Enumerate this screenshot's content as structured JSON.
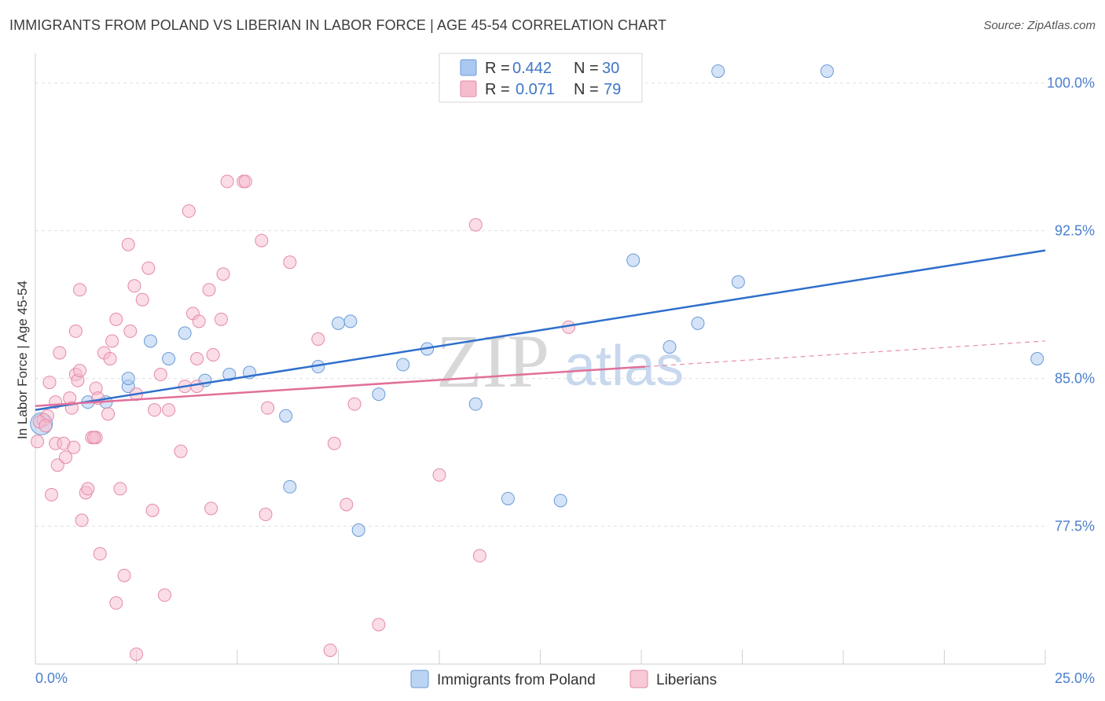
{
  "title": "IMMIGRANTS FROM POLAND VS LIBERIAN IN LABOR FORCE | AGE 45-54 CORRELATION CHART",
  "source": "Source: ZipAtlas.com",
  "watermark": {
    "zip": "ZIP",
    "atlas": "atlas"
  },
  "legend": {
    "rows": [
      {
        "r_label": "R = ",
        "r_value": "0.442",
        "n_label": "N = ",
        "n_value": "30",
        "color": "#a9c8f0",
        "stroke": "#6b9ad8"
      },
      {
        "r_label": "R = ",
        "r_value": "0.071",
        "n_label": "N = ",
        "n_value": "79",
        "color": "#f5bccd",
        "stroke": "#e58aa6"
      }
    ]
  },
  "bottom_legend": [
    {
      "label": "Immigrants from Poland",
      "color": "#bcd4f3",
      "stroke": "#6b9ad8"
    },
    {
      "label": "Liberians",
      "color": "#f8c9d7",
      "stroke": "#e58aa6"
    }
  ],
  "chart_data": {
    "type": "scatter",
    "title": "IMMIGRANTS FROM POLAND VS LIBERIAN IN LABOR FORCE | AGE 45-54 CORRELATION CHART",
    "xlabel": "",
    "ylabel": "In Labor Force | Age 45-54",
    "xlim": [
      0,
      25
    ],
    "ylim": [
      70.5,
      101.5
    ],
    "x_tick_labels": [
      {
        "value": 0,
        "label": "0.0%"
      },
      {
        "value": 25,
        "label": "25.0%"
      }
    ],
    "y_ticks": [
      {
        "value": 77.5,
        "label": "77.5%"
      },
      {
        "value": 85.0,
        "label": "85.0%"
      },
      {
        "value": 92.5,
        "label": "92.5%"
      },
      {
        "value": 100.0,
        "label": "100.0%"
      }
    ],
    "grid": true,
    "series": [
      {
        "name": "Immigrants from Poland",
        "color": "#a9c8f0",
        "stroke": "#6b9ad8",
        "line_color": "#2f6fcc",
        "trend": {
          "x": [
            0,
            25
          ],
          "y": [
            83.4,
            91.5
          ]
        },
        "points": [
          {
            "x": 0.15,
            "y": 82.7,
            "big": true
          },
          {
            "x": 1.3,
            "y": 83.8
          },
          {
            "x": 1.75,
            "y": 83.8
          },
          {
            "x": 2.3,
            "y": 84.6
          },
          {
            "x": 2.3,
            "y": 85.0
          },
          {
            "x": 2.85,
            "y": 86.9
          },
          {
            "x": 3.3,
            "y": 86.0
          },
          {
            "x": 3.7,
            "y": 87.3
          },
          {
            "x": 4.2,
            "y": 84.9
          },
          {
            "x": 4.8,
            "y": 85.2
          },
          {
            "x": 5.3,
            "y": 85.3
          },
          {
            "x": 6.2,
            "y": 83.1
          },
          {
            "x": 6.3,
            "y": 79.5
          },
          {
            "x": 7.0,
            "y": 85.6
          },
          {
            "x": 7.5,
            "y": 87.8
          },
          {
            "x": 7.8,
            "y": 87.9
          },
          {
            "x": 8.0,
            "y": 77.3
          },
          {
            "x": 8.5,
            "y": 84.2
          },
          {
            "x": 9.1,
            "y": 85.7
          },
          {
            "x": 9.7,
            "y": 86.5
          },
          {
            "x": 10.9,
            "y": 83.7
          },
          {
            "x": 11.7,
            "y": 78.9
          },
          {
            "x": 13.0,
            "y": 78.8
          },
          {
            "x": 14.8,
            "y": 91.0
          },
          {
            "x": 15.7,
            "y": 86.6
          },
          {
            "x": 16.4,
            "y": 87.8
          },
          {
            "x": 16.9,
            "y": 100.6
          },
          {
            "x": 17.4,
            "y": 89.9
          },
          {
            "x": 19.6,
            "y": 100.6
          },
          {
            "x": 24.8,
            "y": 86.0
          }
        ]
      },
      {
        "name": "Liberians",
        "color": "#f5bccd",
        "stroke": "#e58aa6",
        "line_color": "#e0709a",
        "trend": {
          "x": [
            0,
            15.1
          ],
          "y": [
            83.6,
            85.6
          ]
        },
        "trend_ext": {
          "x": [
            15.1,
            25
          ],
          "y": [
            85.6,
            86.9
          ]
        },
        "points": [
          {
            "x": 0.05,
            "y": 81.8
          },
          {
            "x": 0.2,
            "y": 82.9
          },
          {
            "x": 0.3,
            "y": 83.1
          },
          {
            "x": 0.35,
            "y": 84.8
          },
          {
            "x": 0.4,
            "y": 79.1
          },
          {
            "x": 0.5,
            "y": 81.7
          },
          {
            "x": 0.5,
            "y": 83.8
          },
          {
            "x": 0.55,
            "y": 80.6
          },
          {
            "x": 0.6,
            "y": 86.3
          },
          {
            "x": 0.7,
            "y": 81.7
          },
          {
            "x": 0.75,
            "y": 81.0
          },
          {
            "x": 0.85,
            "y": 84.0
          },
          {
            "x": 0.9,
            "y": 83.5
          },
          {
            "x": 0.95,
            "y": 81.5
          },
          {
            "x": 1.0,
            "y": 85.2
          },
          {
            "x": 1.0,
            "y": 87.4
          },
          {
            "x": 1.05,
            "y": 84.9
          },
          {
            "x": 1.1,
            "y": 85.4
          },
          {
            "x": 1.1,
            "y": 89.5
          },
          {
            "x": 1.15,
            "y": 77.8
          },
          {
            "x": 1.25,
            "y": 79.2
          },
          {
            "x": 1.3,
            "y": 79.4
          },
          {
            "x": 1.4,
            "y": 82.0
          },
          {
            "x": 1.5,
            "y": 82.0
          },
          {
            "x": 1.5,
            "y": 84.5
          },
          {
            "x": 1.55,
            "y": 84.0
          },
          {
            "x": 1.6,
            "y": 76.1
          },
          {
            "x": 1.7,
            "y": 86.3
          },
          {
            "x": 1.8,
            "y": 83.2
          },
          {
            "x": 1.85,
            "y": 86.0
          },
          {
            "x": 1.9,
            "y": 86.9
          },
          {
            "x": 2.0,
            "y": 88.0
          },
          {
            "x": 2.0,
            "y": 73.6
          },
          {
            "x": 2.1,
            "y": 79.4
          },
          {
            "x": 2.2,
            "y": 75.0
          },
          {
            "x": 2.3,
            "y": 91.8
          },
          {
            "x": 2.35,
            "y": 87.4
          },
          {
            "x": 2.45,
            "y": 89.7
          },
          {
            "x": 2.5,
            "y": 84.2
          },
          {
            "x": 2.5,
            "y": 71.0
          },
          {
            "x": 2.65,
            "y": 89.0
          },
          {
            "x": 2.8,
            "y": 90.6
          },
          {
            "x": 2.9,
            "y": 78.3
          },
          {
            "x": 2.95,
            "y": 83.4
          },
          {
            "x": 3.1,
            "y": 85.2
          },
          {
            "x": 3.2,
            "y": 74.0
          },
          {
            "x": 3.3,
            "y": 83.4
          },
          {
            "x": 3.6,
            "y": 81.3
          },
          {
            "x": 3.7,
            "y": 84.6
          },
          {
            "x": 3.8,
            "y": 93.5
          },
          {
            "x": 3.9,
            "y": 88.3
          },
          {
            "x": 4.0,
            "y": 86.0
          },
          {
            "x": 4.0,
            "y": 84.6
          },
          {
            "x": 4.05,
            "y": 87.9
          },
          {
            "x": 4.3,
            "y": 89.5
          },
          {
            "x": 4.35,
            "y": 78.4
          },
          {
            "x": 4.4,
            "y": 86.2
          },
          {
            "x": 4.6,
            "y": 88.0
          },
          {
            "x": 4.65,
            "y": 90.3
          },
          {
            "x": 4.75,
            "y": 95.0
          },
          {
            "x": 5.15,
            "y": 95.0
          },
          {
            "x": 5.2,
            "y": 95.0
          },
          {
            "x": 5.6,
            "y": 92.0
          },
          {
            "x": 5.7,
            "y": 78.1
          },
          {
            "x": 5.75,
            "y": 83.5
          },
          {
            "x": 6.3,
            "y": 90.9
          },
          {
            "x": 7.0,
            "y": 87.0
          },
          {
            "x": 7.3,
            "y": 71.2
          },
          {
            "x": 7.4,
            "y": 81.7
          },
          {
            "x": 7.7,
            "y": 78.6
          },
          {
            "x": 7.9,
            "y": 83.7
          },
          {
            "x": 8.5,
            "y": 72.5
          },
          {
            "x": 10.0,
            "y": 80.1
          },
          {
            "x": 10.9,
            "y": 92.8
          },
          {
            "x": 11.0,
            "y": 76.0
          },
          {
            "x": 13.2,
            "y": 87.6
          },
          {
            "x": 0.1,
            "y": 82.8
          },
          {
            "x": 0.25,
            "y": 82.6
          },
          {
            "x": 1.45,
            "y": 82.0
          }
        ]
      }
    ]
  }
}
